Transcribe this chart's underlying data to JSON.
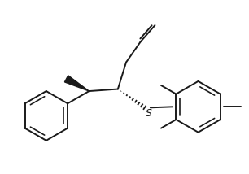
{
  "bg_color": "#ffffff",
  "line_color": "#1a1a1a",
  "lw": 1.4,
  "figsize": [
    3.06,
    2.14
  ],
  "dpi": 100,
  "xlim": [
    0.0,
    6.0
  ],
  "ylim": [
    0.0,
    4.2
  ]
}
